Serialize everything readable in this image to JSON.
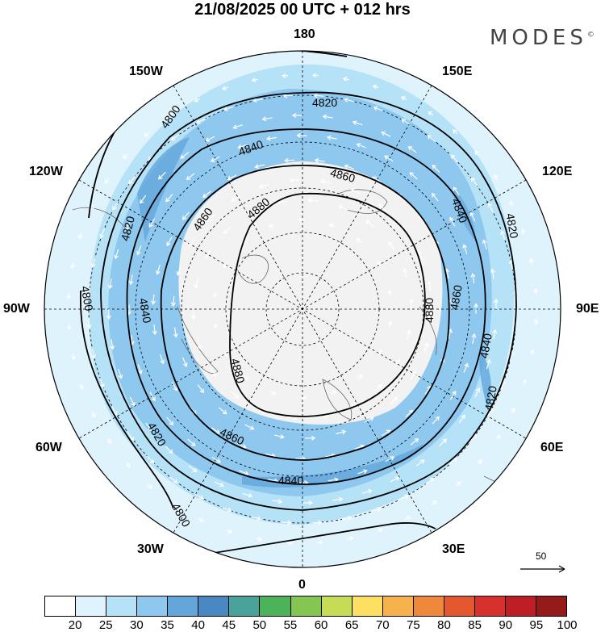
{
  "title": "21/08/2025  00 UTC  + 012 hrs",
  "logo": "MODES",
  "logo_mark": "©",
  "longitude_labels": {
    "top": "180",
    "top_left": "150W",
    "top_right": "150E",
    "upper_left": "120W",
    "upper_right": "120E",
    "left": "90W",
    "right": "90E",
    "lower_left": "60W",
    "lower_right": "60E",
    "bottom_left": "30W",
    "bottom_right": "30E",
    "bottom": "0"
  },
  "contours": {
    "c4800": "4800",
    "c4820": "4820",
    "c4840": "4840",
    "c4860": "4860",
    "c4880": "4880"
  },
  "vector_scale": "50",
  "colorbar": {
    "levels": [
      "20",
      "25",
      "30",
      "35",
      "40",
      "45",
      "50",
      "55",
      "60",
      "65",
      "70",
      "75",
      "80",
      "85",
      "90",
      "95",
      "100"
    ],
    "colors": [
      "#ffffff",
      "#dff3fd",
      "#b6e2f8",
      "#8ec8ef",
      "#64a6dc",
      "#4a88c4",
      "#4aa39a",
      "#4cb35b",
      "#84c651",
      "#c6dc55",
      "#fde062",
      "#f7b24d",
      "#f0883c",
      "#e4572f",
      "#d8302b",
      "#bd1f25",
      "#951a1a"
    ]
  }
}
